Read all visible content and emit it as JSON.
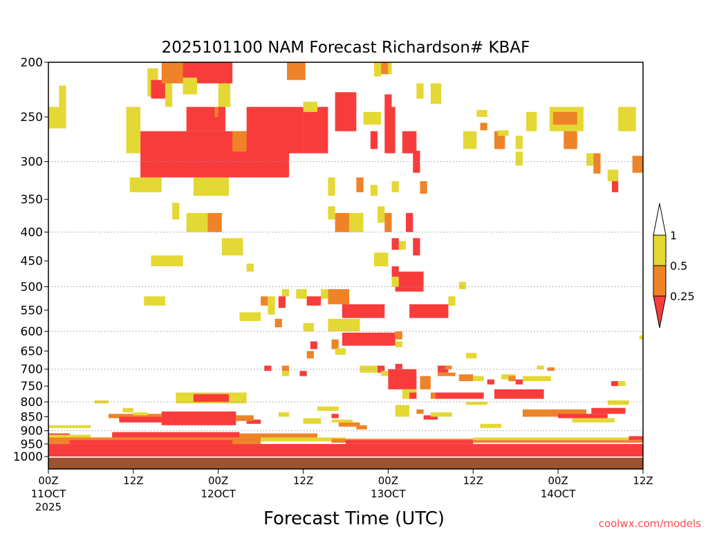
{
  "chart_data": {
    "type": "heatmap",
    "title": "2025101100 NAM Forecast Richardson# KBAF",
    "xlabel": "Forecast Time (UTC)",
    "ylabel": "",
    "credit": "coolwx.com/models",
    "xlim_hours": [
      0,
      84
    ],
    "ylim_hpa": [
      200,
      1052
    ],
    "y_scale": "log",
    "y_ticks": [
      200,
      250,
      300,
      350,
      400,
      450,
      500,
      550,
      600,
      650,
      700,
      750,
      800,
      850,
      900,
      950,
      1000
    ],
    "y_gridlines": [
      300,
      400,
      500,
      600,
      700,
      800,
      900
    ],
    "x_ticks": [
      {
        "hour": 0,
        "lines": [
          "00Z",
          "11OCT",
          "2025"
        ]
      },
      {
        "hour": 12,
        "lines": [
          "12Z"
        ]
      },
      {
        "hour": 24,
        "lines": [
          "00Z",
          "12OCT"
        ]
      },
      {
        "hour": 36,
        "lines": [
          "12Z"
        ]
      },
      {
        "hour": 48,
        "lines": [
          "00Z",
          "13OCT"
        ]
      },
      {
        "hour": 60,
        "lines": [
          "12Z"
        ]
      },
      {
        "hour": 72,
        "lines": [
          "00Z",
          "14OCT"
        ]
      },
      {
        "hour": 84,
        "lines": [
          "12Z"
        ]
      }
    ],
    "legend": {
      "placement": "right",
      "bins": [
        {
          "label": "1",
          "color": "#ffffff",
          "range": "> 1"
        },
        {
          "label": "0.5",
          "color": "#e4d834",
          "range": "0.5 - 1"
        },
        {
          "label": "0.25",
          "color": "#ee8328",
          "range": "0.25 - 0.5"
        },
        {
          "label": "",
          "color": "#f83c3c",
          "range": "< 0.25"
        }
      ]
    },
    "category_colors": {
      "1": "#f83c3c",
      "2": "#ee8328",
      "3": "#e4d834"
    },
    "ground_color": "#9c522d",
    "surface_hpa": 1005,
    "cells_format": [
      "hour_start",
      "hour_end",
      "p_top_hpa",
      "p_bottom_hpa",
      "category(1:<0.25,2:0.25-0.5,3:0.5-1)"
    ],
    "cells": [
      [
        0,
        2.5,
        240,
        262,
        3
      ],
      [
        1.5,
        2.5,
        220,
        240,
        3
      ],
      [
        11,
        13,
        240,
        290,
        3
      ],
      [
        14,
        15.5,
        205,
        230,
        3
      ],
      [
        14.5,
        16.5,
        215,
        232,
        1
      ],
      [
        16.5,
        17.5,
        215,
        240,
        3
      ],
      [
        16,
        19,
        200,
        218,
        2
      ],
      [
        19,
        26,
        200,
        218,
        1
      ],
      [
        19,
        21,
        213,
        228,
        3
      ],
      [
        24,
        25.7,
        218,
        240,
        3
      ],
      [
        13,
        34,
        265,
        320,
        1
      ],
      [
        19.5,
        25,
        240,
        265,
        1
      ],
      [
        28,
        36,
        240,
        290,
        1
      ],
      [
        26,
        28,
        265,
        288,
        2
      ],
      [
        23.5,
        24,
        240,
        250,
        2
      ],
      [
        36,
        39.5,
        240,
        290,
        1
      ],
      [
        33.7,
        36.3,
        200,
        215,
        2
      ],
      [
        36,
        38,
        235,
        245,
        3
      ],
      [
        40.5,
        43.5,
        226,
        265,
        1
      ],
      [
        44.5,
        47,
        245,
        258,
        3
      ],
      [
        47.5,
        48.5,
        228,
        245,
        1
      ],
      [
        46,
        47,
        200,
        212,
        3
      ],
      [
        47,
        48,
        200,
        210,
        2
      ],
      [
        48,
        48.5,
        200,
        210,
        3
      ],
      [
        47.5,
        49,
        240,
        290,
        1
      ],
      [
        50,
        52,
        265,
        290,
        1
      ],
      [
        45.5,
        46.5,
        265,
        285,
        1
      ],
      [
        51.5,
        52.5,
        287,
        314,
        1
      ],
      [
        52,
        53,
        218,
        232,
        3
      ],
      [
        54,
        55.5,
        218,
        237,
        3
      ],
      [
        20.5,
        25.5,
        320,
        345,
        3
      ],
      [
        11.5,
        16,
        320,
        340,
        3
      ],
      [
        17.5,
        18.5,
        355,
        380,
        3
      ],
      [
        70.8,
        75.6,
        240,
        265,
        3
      ],
      [
        71.3,
        74.7,
        245,
        258,
        2
      ],
      [
        63,
        64.5,
        265,
        285,
        2
      ],
      [
        58.6,
        60.5,
        265,
        285,
        3
      ],
      [
        72.8,
        74.7,
        265,
        285,
        2
      ],
      [
        80.5,
        83,
        240,
        265,
        3
      ],
      [
        82.5,
        84,
        293,
        314,
        2
      ],
      [
        79.6,
        80.5,
        320,
        340,
        1
      ],
      [
        60.5,
        62,
        243,
        250,
        3
      ],
      [
        67.5,
        69,
        245,
        265,
        3
      ],
      [
        61,
        62,
        256,
        264,
        2
      ],
      [
        63.5,
        65,
        264,
        270,
        3
      ],
      [
        66,
        67,
        270,
        285,
        3
      ],
      [
        66,
        67,
        288,
        305,
        3
      ],
      [
        76,
        77,
        290,
        305,
        3
      ],
      [
        77,
        78,
        290,
        315,
        2
      ],
      [
        79,
        80.5,
        310,
        325,
        3
      ],
      [
        39.5,
        40.5,
        320,
        345,
        3
      ],
      [
        39.5,
        40.5,
        360,
        380,
        3
      ],
      [
        43.5,
        44.5,
        320,
        340,
        2
      ],
      [
        45.5,
        46.5,
        330,
        345,
        3
      ],
      [
        48.5,
        49.5,
        325,
        340,
        3
      ],
      [
        52.5,
        53.5,
        325,
        342,
        2
      ],
      [
        46.5,
        47.5,
        360,
        385,
        3
      ],
      [
        19.5,
        22.5,
        370,
        400,
        3
      ],
      [
        22.5,
        24.5,
        370,
        400,
        2
      ],
      [
        24.5,
        27.5,
        410,
        440,
        3
      ],
      [
        40.5,
        42.5,
        370,
        400,
        2
      ],
      [
        42.5,
        44.5,
        370,
        400,
        3
      ],
      [
        47.5,
        48.5,
        370,
        400,
        2
      ],
      [
        50.5,
        51.5,
        370,
        400,
        1
      ],
      [
        48.5,
        49.5,
        410,
        430,
        1
      ],
      [
        51.5,
        52.5,
        410,
        440,
        1
      ],
      [
        49.5,
        50.5,
        415,
        430,
        3
      ],
      [
        46,
        48,
        435,
        460,
        3
      ],
      [
        14.5,
        19,
        440,
        460,
        3
      ],
      [
        28,
        29,
        455,
        470,
        3
      ],
      [
        13.5,
        16.5,
        520,
        540,
        3
      ],
      [
        49,
        53,
        470,
        510,
        1
      ],
      [
        48.5,
        49.5,
        460,
        480,
        1
      ],
      [
        48.5,
        49.5,
        480,
        500,
        3
      ],
      [
        58,
        59,
        490,
        505,
        3
      ],
      [
        39.5,
        42.5,
        505,
        537,
        2
      ],
      [
        41.5,
        47.5,
        537,
        568,
        1
      ],
      [
        51,
        56.5,
        537,
        568,
        1
      ],
      [
        56.5,
        57.5,
        520,
        540,
        3
      ],
      [
        27,
        30,
        555,
        575,
        3
      ],
      [
        30,
        31,
        520,
        540,
        2
      ],
      [
        31,
        32,
        520,
        560,
        3
      ],
      [
        32.5,
        33.5,
        520,
        545,
        1
      ],
      [
        32,
        33,
        570,
        590,
        2
      ],
      [
        33,
        34,
        505,
        520,
        3
      ],
      [
        35,
        36.5,
        505,
        525,
        3
      ],
      [
        36.5,
        38.5,
        520,
        540,
        1
      ],
      [
        38.5,
        39.5,
        505,
        525,
        3
      ],
      [
        36,
        37.5,
        580,
        600,
        3
      ],
      [
        39.5,
        44,
        570,
        600,
        3
      ],
      [
        41.5,
        49,
        603,
        636,
        1
      ],
      [
        37,
        38,
        625,
        645,
        1
      ],
      [
        40,
        41,
        620,
        645,
        2
      ],
      [
        40.5,
        42,
        643,
        660,
        3
      ],
      [
        36.5,
        37.5,
        650,
        670,
        2
      ],
      [
        35.5,
        36.5,
        705,
        720,
        1
      ],
      [
        33,
        34,
        705,
        720,
        3
      ],
      [
        30.5,
        31.5,
        690,
        705,
        1
      ],
      [
        33,
        34,
        690,
        705,
        2
      ],
      [
        44,
        47,
        690,
        710,
        3
      ],
      [
        49,
        50,
        625,
        640,
        3
      ],
      [
        49,
        50,
        600,
        620,
        2
      ],
      [
        49,
        50,
        685,
        700,
        1
      ],
      [
        46.5,
        47.5,
        690,
        710,
        1
      ],
      [
        47,
        48,
        705,
        720,
        3
      ],
      [
        48,
        52,
        700,
        760,
        1
      ],
      [
        52.5,
        54,
        720,
        760,
        2
      ],
      [
        50,
        52,
        760,
        790,
        3
      ],
      [
        51,
        52,
        770,
        790,
        1
      ],
      [
        54,
        55,
        770,
        790,
        2
      ],
      [
        59,
        60.5,
        655,
        670,
        3
      ],
      [
        55,
        56.5,
        690,
        710,
        1
      ],
      [
        55,
        57.5,
        710,
        720,
        2
      ],
      [
        58,
        60,
        715,
        735,
        2
      ],
      [
        60,
        61.5,
        720,
        735,
        3
      ],
      [
        56,
        57,
        690,
        700,
        2
      ],
      [
        62,
        63,
        730,
        745,
        1
      ],
      [
        64,
        66,
        715,
        730,
        3
      ],
      [
        65,
        66,
        720,
        735,
        2
      ],
      [
        66,
        67,
        730,
        745,
        1
      ],
      [
        67,
        71,
        720,
        735,
        3
      ],
      [
        69,
        70,
        690,
        700,
        3
      ],
      [
        70.5,
        71.5,
        695,
        705,
        2
      ],
      [
        63,
        70,
        760,
        790,
        1
      ],
      [
        79.5,
        80.5,
        735,
        750,
        1
      ],
      [
        80.5,
        81.5,
        735,
        750,
        3
      ],
      [
        83.5,
        84,
        610,
        620,
        3
      ],
      [
        54.7,
        61.5,
        770,
        790,
        1
      ],
      [
        18,
        28,
        770,
        805,
        3
      ],
      [
        20.5,
        25.5,
        775,
        800,
        1
      ],
      [
        16,
        26.5,
        832,
        880,
        1
      ],
      [
        6.5,
        8.5,
        795,
        805,
        3
      ],
      [
        10.5,
        12,
        820,
        835,
        3
      ],
      [
        8.5,
        16,
        840,
        855,
        2
      ],
      [
        10,
        16,
        850,
        870,
        1
      ],
      [
        12,
        14,
        835,
        845,
        3
      ],
      [
        28,
        30,
        860,
        875,
        1
      ],
      [
        26.5,
        29,
        845,
        865,
        2
      ],
      [
        36,
        38.5,
        855,
        875,
        3
      ],
      [
        32.5,
        34,
        835,
        850,
        3
      ],
      [
        41,
        44,
        870,
        885,
        2
      ],
      [
        40,
        43,
        860,
        870,
        3
      ],
      [
        40,
        41,
        840,
        855,
        1
      ],
      [
        38,
        41,
        815,
        830,
        3
      ],
      [
        43.5,
        45,
        880,
        895,
        2
      ],
      [
        49,
        51,
        810,
        850,
        3
      ],
      [
        53,
        55,
        845,
        860,
        1
      ],
      [
        54,
        57,
        835,
        850,
        3
      ],
      [
        52,
        53,
        825,
        840,
        2
      ],
      [
        59,
        62,
        800,
        810,
        3
      ],
      [
        61,
        64,
        875,
        890,
        3
      ],
      [
        67,
        76,
        825,
        850,
        2
      ],
      [
        72,
        79,
        840,
        855,
        1
      ],
      [
        74,
        80,
        855,
        870,
        3
      ],
      [
        79,
        81.5,
        820,
        835,
        2
      ],
      [
        79,
        82,
        795,
        810,
        3
      ],
      [
        76.7,
        81.5,
        820,
        840,
        1
      ],
      [
        0,
        6,
        880,
        890,
        3
      ],
      [
        0,
        6,
        915,
        925,
        3
      ],
      [
        0,
        3,
        910,
        915,
        1
      ],
      [
        9,
        27,
        905,
        925,
        1
      ],
      [
        0,
        30,
        925,
        950,
        2
      ],
      [
        3,
        26,
        935,
        950,
        1
      ],
      [
        27,
        38,
        910,
        935,
        2
      ],
      [
        30,
        42,
        925,
        940,
        3
      ],
      [
        40,
        60,
        930,
        945,
        2
      ],
      [
        42,
        60,
        935,
        950,
        1
      ],
      [
        60,
        84,
        925,
        935,
        3
      ],
      [
        60,
        84,
        935,
        945,
        2
      ],
      [
        82,
        84,
        920,
        935,
        1
      ],
      [
        0,
        84,
        950,
        1005,
        1
      ]
    ]
  }
}
